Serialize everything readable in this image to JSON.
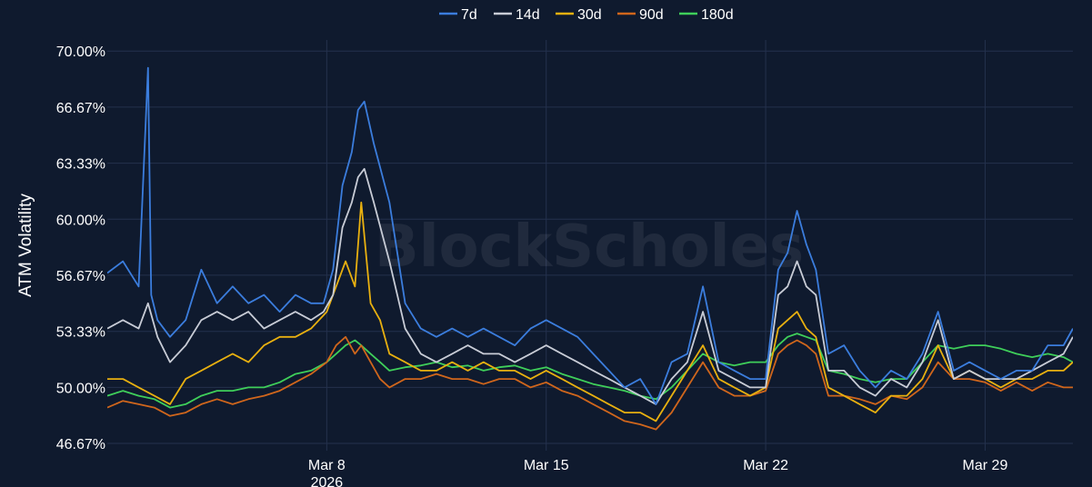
{
  "watermark": "BlockScholes",
  "chart_data": {
    "type": "line",
    "ylabel": "ATM Volatility",
    "xlabel": "",
    "ylim": [
      46.67,
      71.2
    ],
    "y_ticks": [
      "70.00%",
      "66.67%",
      "63.33%",
      "60.00%",
      "56.67%",
      "53.33%",
      "50.00%",
      "46.67%"
    ],
    "y_tick_values": [
      70.0,
      66.67,
      63.33,
      60.0,
      56.67,
      53.33,
      50.0,
      46.67
    ],
    "x_range": [
      1,
      31.8
    ],
    "x_ticks": [
      {
        "day": 8,
        "label": "Mar 8",
        "sublabel": "2026"
      },
      {
        "day": 15,
        "label": "Mar 15",
        "sublabel": ""
      },
      {
        "day": 22,
        "label": "Mar 22",
        "sublabel": ""
      },
      {
        "day": 29,
        "label": "Mar 29",
        "sublabel": ""
      }
    ],
    "grid": true,
    "legend_position": "top-center",
    "series": [
      {
        "name": "7d",
        "color": "#3b7ddd",
        "x": [
          1,
          1.5,
          2,
          2.3,
          2.4,
          2.6,
          3,
          3.5,
          4,
          4.5,
          5,
          5.5,
          6,
          6.5,
          7,
          7.5,
          7.9,
          8.2,
          8.5,
          8.8,
          9,
          9.2,
          9.5,
          10,
          10.5,
          11,
          11.5,
          12,
          12.5,
          13,
          13.5,
          14,
          14.5,
          15,
          15.5,
          16,
          16.5,
          17,
          17.5,
          18,
          18.5,
          19,
          19.5,
          20,
          20.5,
          21,
          21.5,
          22,
          22.4,
          22.7,
          23,
          23.3,
          23.6,
          24,
          24.5,
          25,
          25.5,
          26,
          26.5,
          27,
          27.5,
          28,
          28.5,
          29,
          29.5,
          30,
          30.5,
          31,
          31.5,
          31.8
        ],
        "y": [
          56.8,
          57.5,
          56.0,
          69.0,
          55.5,
          54.0,
          53.0,
          54.0,
          57.0,
          55.0,
          56.0,
          55.0,
          55.5,
          54.5,
          55.5,
          55.0,
          55.0,
          57.0,
          62.0,
          64.0,
          66.5,
          67.0,
          64.5,
          61.0,
          55.0,
          53.5,
          53.0,
          53.5,
          53.0,
          53.5,
          53.0,
          52.5,
          53.5,
          54.0,
          53.5,
          53.0,
          52.0,
          51.0,
          50.0,
          50.5,
          49.0,
          51.5,
          52.0,
          56.0,
          51.5,
          51.0,
          50.5,
          50.5,
          57.0,
          58.0,
          60.5,
          58.5,
          57.0,
          52.0,
          52.5,
          51.0,
          50.0,
          51.0,
          50.5,
          52.0,
          54.5,
          51.0,
          51.5,
          51.0,
          50.5,
          51.0,
          51.0,
          52.5,
          52.5,
          53.5
        ]
      },
      {
        "name": "14d",
        "color": "#c8ccd6",
        "x": [
          1,
          1.5,
          2,
          2.3,
          2.6,
          3,
          3.5,
          4,
          4.5,
          5,
          5.5,
          6,
          6.5,
          7,
          7.5,
          7.9,
          8.2,
          8.5,
          8.8,
          9,
          9.2,
          9.5,
          10,
          10.5,
          11,
          11.5,
          12,
          12.5,
          13,
          13.5,
          14,
          14.5,
          15,
          15.5,
          16,
          16.5,
          17,
          17.5,
          18,
          18.5,
          19,
          19.5,
          20,
          20.5,
          21,
          21.5,
          22,
          22.4,
          22.7,
          23,
          23.3,
          23.6,
          24,
          24.5,
          25,
          25.5,
          26,
          26.5,
          27,
          27.5,
          28,
          28.5,
          29,
          29.5,
          30,
          30.5,
          31,
          31.5,
          31.8
        ],
        "y": [
          53.5,
          54.0,
          53.5,
          55.0,
          53.0,
          51.5,
          52.5,
          54.0,
          54.5,
          54.0,
          54.5,
          53.5,
          54.0,
          54.5,
          54.0,
          54.5,
          55.5,
          59.5,
          61.0,
          62.5,
          63.0,
          61.0,
          57.5,
          53.5,
          52.0,
          51.5,
          52.0,
          52.5,
          52.0,
          52.0,
          51.5,
          52.0,
          52.5,
          52.0,
          51.5,
          51.0,
          50.5,
          50.0,
          49.5,
          49.0,
          50.5,
          51.5,
          54.5,
          51.0,
          50.5,
          50.0,
          50.0,
          55.5,
          56.0,
          57.5,
          56.0,
          55.5,
          51.0,
          51.0,
          50.0,
          49.5,
          50.5,
          50.0,
          51.5,
          54.0,
          50.5,
          51.0,
          50.5,
          50.5,
          50.5,
          51.0,
          51.5,
          52.0,
          53.0
        ]
      },
      {
        "name": "30d",
        "color": "#e8b010",
        "x": [
          1,
          1.5,
          2,
          2.5,
          3,
          3.5,
          4,
          4.5,
          5,
          5.5,
          6,
          6.5,
          7,
          7.5,
          8,
          8.3,
          8.6,
          8.9,
          9.1,
          9.4,
          9.7,
          10,
          10.5,
          11,
          11.5,
          12,
          12.5,
          13,
          13.5,
          14,
          14.5,
          15,
          15.5,
          16,
          16.5,
          17,
          17.5,
          18,
          18.5,
          19,
          19.5,
          20,
          20.5,
          21,
          21.5,
          22,
          22.4,
          22.7,
          23,
          23.3,
          23.6,
          24,
          24.5,
          25,
          25.5,
          26,
          26.5,
          27,
          27.5,
          28,
          28.5,
          29,
          29.5,
          30,
          30.5,
          31,
          31.5,
          31.8
        ],
        "y": [
          50.5,
          50.5,
          50.0,
          49.5,
          49.0,
          50.5,
          51.0,
          51.5,
          52.0,
          51.5,
          52.5,
          53.0,
          53.0,
          53.5,
          54.5,
          56.0,
          57.5,
          56.0,
          61.0,
          55.0,
          54.0,
          52.0,
          51.5,
          51.0,
          51.0,
          51.5,
          51.0,
          51.5,
          51.0,
          51.0,
          50.5,
          51.0,
          50.5,
          50.0,
          49.5,
          49.0,
          48.5,
          48.5,
          48.0,
          49.5,
          51.0,
          52.5,
          50.5,
          50.0,
          49.5,
          50.0,
          53.5,
          54.0,
          54.5,
          53.5,
          53.0,
          50.0,
          49.5,
          49.0,
          48.5,
          49.5,
          49.5,
          50.5,
          52.5,
          50.5,
          51.0,
          50.5,
          50.0,
          50.5,
          50.5,
          51.0,
          51.0,
          51.5
        ]
      },
      {
        "name": "90d",
        "color": "#d0661c",
        "x": [
          1,
          1.5,
          2,
          2.5,
          3,
          3.5,
          4,
          4.5,
          5,
          5.5,
          6,
          6.5,
          7,
          7.5,
          8,
          8.3,
          8.6,
          8.9,
          9.1,
          9.4,
          9.7,
          10,
          10.5,
          11,
          11.5,
          12,
          12.5,
          13,
          13.5,
          14,
          14.5,
          15,
          15.5,
          16,
          16.5,
          17,
          17.5,
          18,
          18.5,
          19,
          19.5,
          20,
          20.5,
          21,
          21.5,
          22,
          22.4,
          22.7,
          23,
          23.3,
          23.6,
          24,
          24.5,
          25,
          25.5,
          26,
          26.5,
          27,
          27.5,
          28,
          28.5,
          29,
          29.5,
          30,
          30.5,
          31,
          31.5,
          31.8
        ],
        "y": [
          48.8,
          49.2,
          49.0,
          48.8,
          48.3,
          48.5,
          49.0,
          49.3,
          49.0,
          49.3,
          49.5,
          49.8,
          50.3,
          50.8,
          51.5,
          52.5,
          53.0,
          52.0,
          52.5,
          51.5,
          50.5,
          50.0,
          50.5,
          50.5,
          50.8,
          50.5,
          50.5,
          50.2,
          50.5,
          50.5,
          50.0,
          50.3,
          49.8,
          49.5,
          49.0,
          48.5,
          48.0,
          47.8,
          47.5,
          48.5,
          50.0,
          51.5,
          50.0,
          49.5,
          49.5,
          49.8,
          52.0,
          52.5,
          52.8,
          52.5,
          52.0,
          49.5,
          49.5,
          49.3,
          49.0,
          49.5,
          49.3,
          50.0,
          51.5,
          50.5,
          50.5,
          50.3,
          49.8,
          50.3,
          49.8,
          50.3,
          50.0,
          50.0
        ]
      },
      {
        "name": "180d",
        "color": "#3fcf5a",
        "x": [
          1,
          1.5,
          2,
          2.5,
          3,
          3.5,
          4,
          4.5,
          5,
          5.5,
          6,
          6.5,
          7,
          7.5,
          8,
          8.3,
          8.6,
          8.9,
          9.1,
          9.4,
          9.7,
          10,
          10.5,
          11,
          11.5,
          12,
          12.5,
          13,
          13.5,
          14,
          14.5,
          15,
          15.5,
          16,
          16.5,
          17,
          17.5,
          18,
          18.5,
          19,
          19.5,
          20,
          20.5,
          21,
          21.5,
          22,
          22.4,
          22.7,
          23,
          23.3,
          23.6,
          24,
          24.5,
          25,
          25.5,
          26,
          26.5,
          27,
          27.5,
          28,
          28.5,
          29,
          29.5,
          30,
          30.5,
          31,
          31.5,
          31.8
        ],
        "y": [
          49.5,
          49.8,
          49.5,
          49.3,
          48.8,
          49.0,
          49.5,
          49.8,
          49.8,
          50.0,
          50.0,
          50.3,
          50.8,
          51.0,
          51.5,
          52.0,
          52.5,
          52.8,
          52.5,
          52.0,
          51.5,
          51.0,
          51.2,
          51.3,
          51.5,
          51.2,
          51.3,
          51.0,
          51.2,
          51.3,
          51.0,
          51.2,
          50.8,
          50.5,
          50.2,
          50.0,
          49.8,
          49.5,
          49.3,
          50.0,
          51.0,
          52.0,
          51.5,
          51.3,
          51.5,
          51.5,
          52.5,
          53.0,
          53.2,
          53.0,
          52.8,
          51.0,
          50.8,
          50.5,
          50.3,
          50.5,
          50.5,
          51.5,
          52.5,
          52.3,
          52.5,
          52.5,
          52.3,
          52.0,
          51.8,
          52.0,
          51.8,
          51.5
        ]
      }
    ]
  }
}
